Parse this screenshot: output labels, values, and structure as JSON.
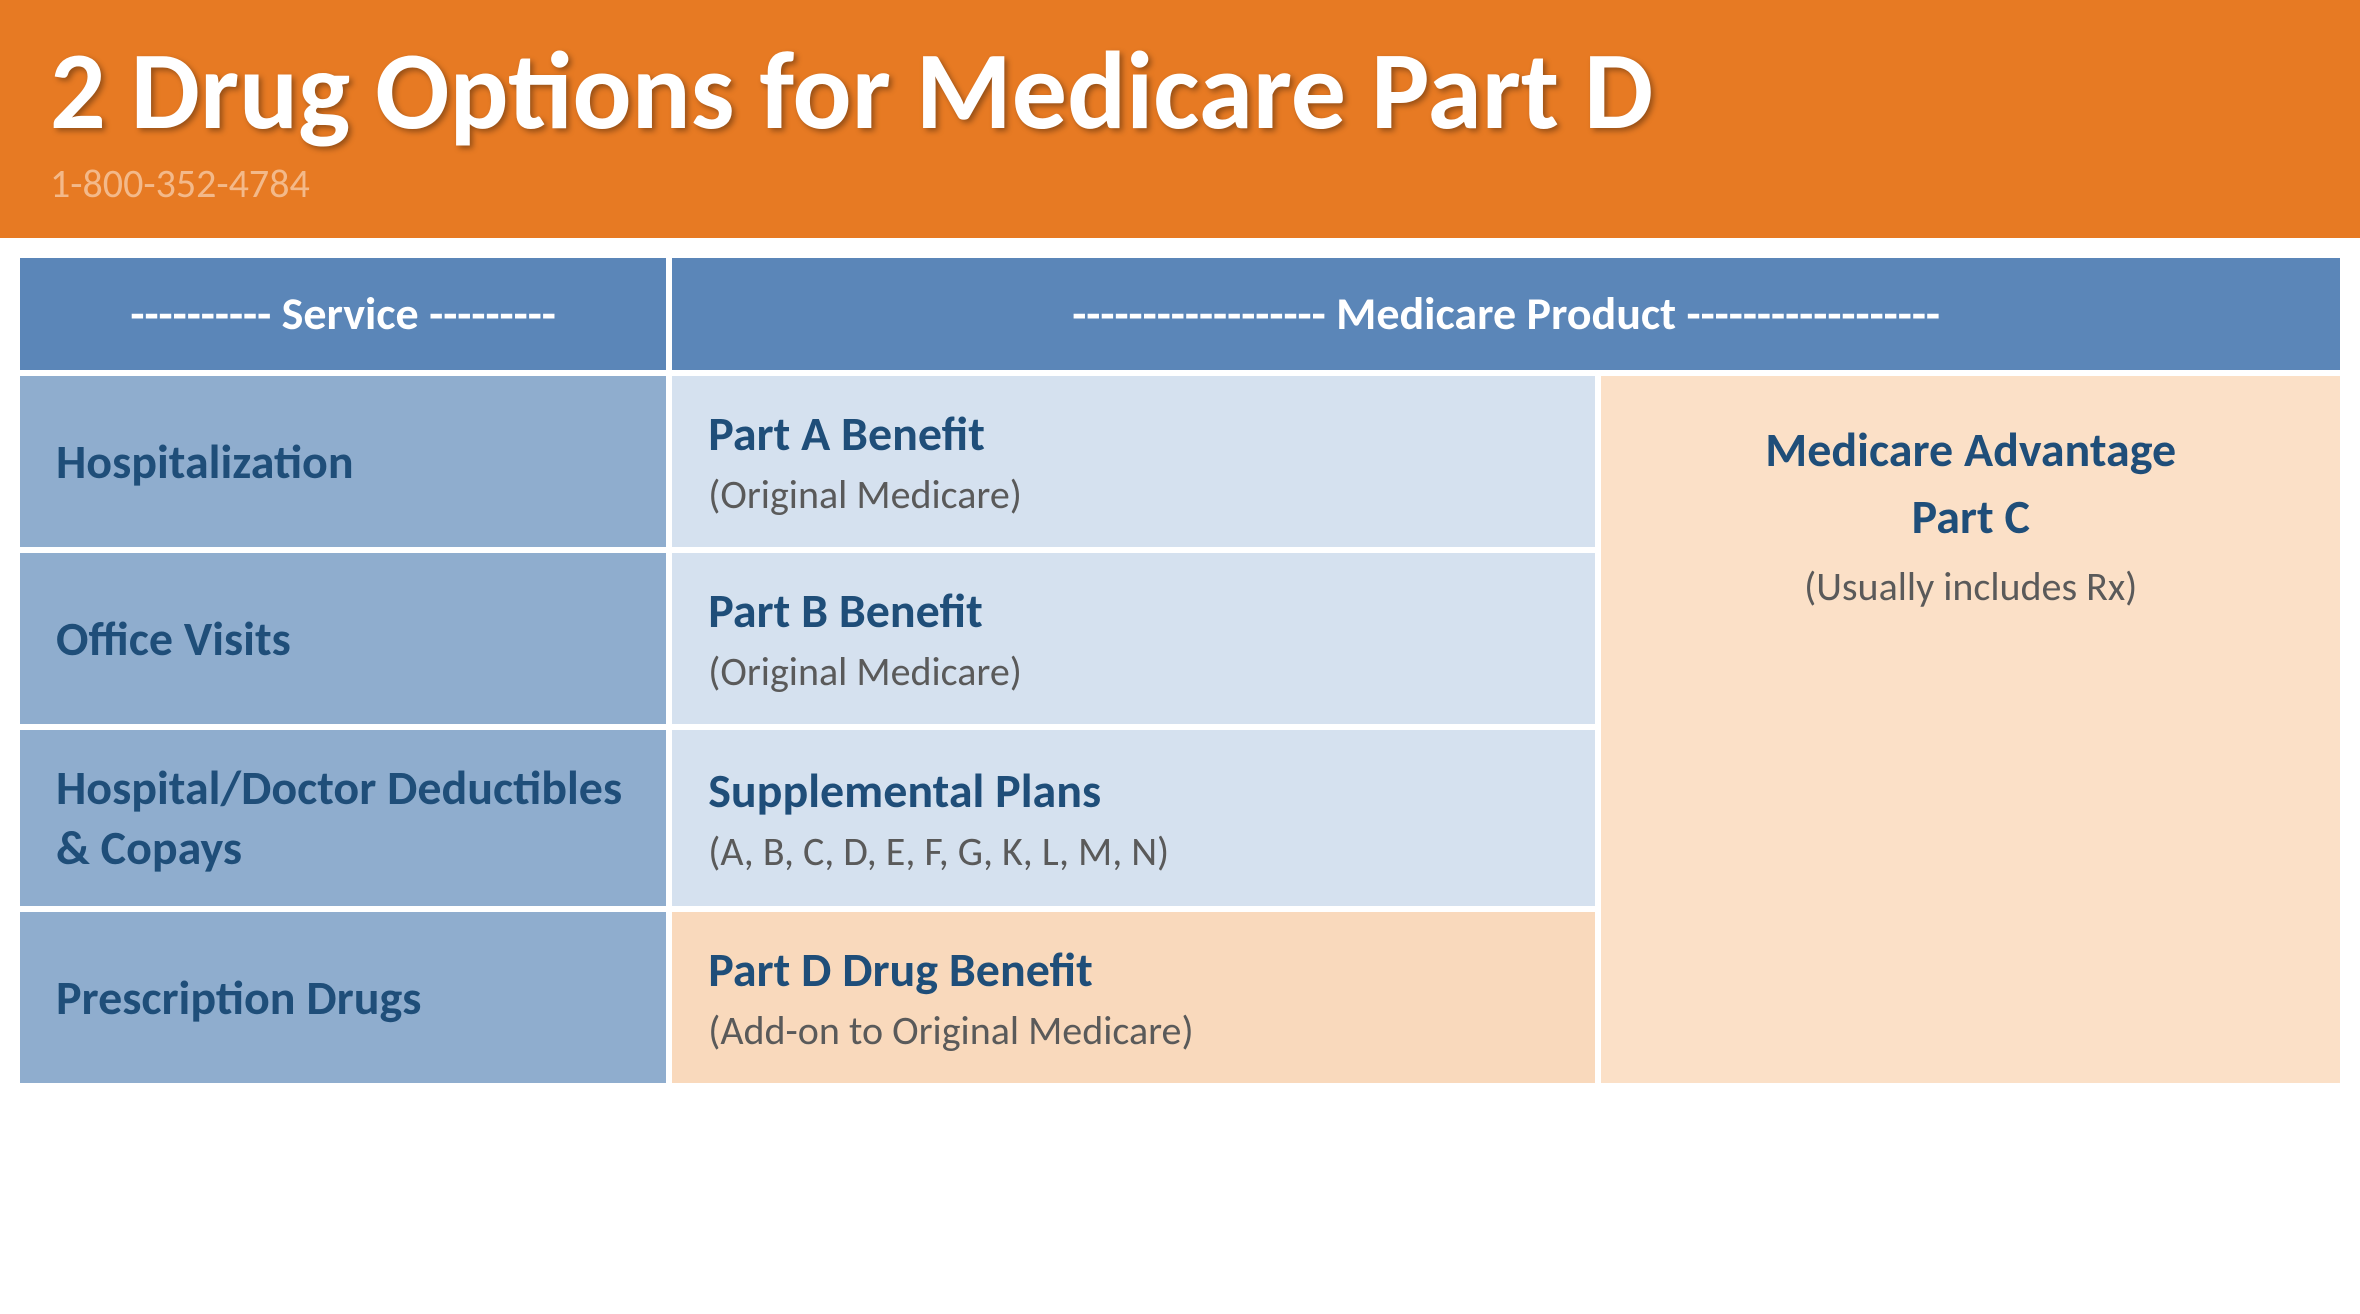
{
  "colors": {
    "header_bg": "#e77a23",
    "title_text": "#ffffff",
    "phone_text": "#f3b98a",
    "th_bg": "#5b86b8",
    "th_text": "#ffffff",
    "svc_bg": "#8fadce",
    "svc_text": "#1f4e79",
    "prod_blue_bg": "#d5e1ef",
    "prod_title_text": "#1f4e79",
    "prod_sub_text": "#5a5a5a",
    "prod_orange_bg": "#f9d9bc",
    "adv_bg": "#fbe0c7",
    "border_white": "#ffffff"
  },
  "header": {
    "title": "2 Drug Options for Medicare Part D",
    "phone": "1-800-352-4784"
  },
  "table": {
    "col_widths": [
      "28%",
      "40%",
      "32%"
    ],
    "headers": {
      "service": "---------- Service ---------",
      "product": "------------------ Medicare Product ------------------"
    },
    "rows": [
      {
        "service": "Hospitalization",
        "product_title": "Part A Benefit",
        "product_sub": "(Original Medicare)",
        "product_bg_key": "prod_blue_bg"
      },
      {
        "service": "Office Visits",
        "product_title": "Part B Benefit",
        "product_sub": "(Original Medicare)",
        "product_bg_key": "prod_blue_bg"
      },
      {
        "service": "Hospital/Doctor Deductibles & Copays",
        "product_title": "Supplemental Plans",
        "product_sub": "(A, B, C, D, E, F, G, K, L, M, N)",
        "product_bg_key": "prod_blue_bg"
      },
      {
        "service": "Prescription Drugs",
        "product_title": "Part D Drug Benefit",
        "product_sub": "(Add-on to Original Medicare)",
        "product_bg_key": "prod_orange_bg"
      }
    ],
    "advantage": {
      "title_line1": "Medicare Advantage",
      "title_line2": "Part C",
      "sub": "(Usually includes Rx)"
    }
  }
}
